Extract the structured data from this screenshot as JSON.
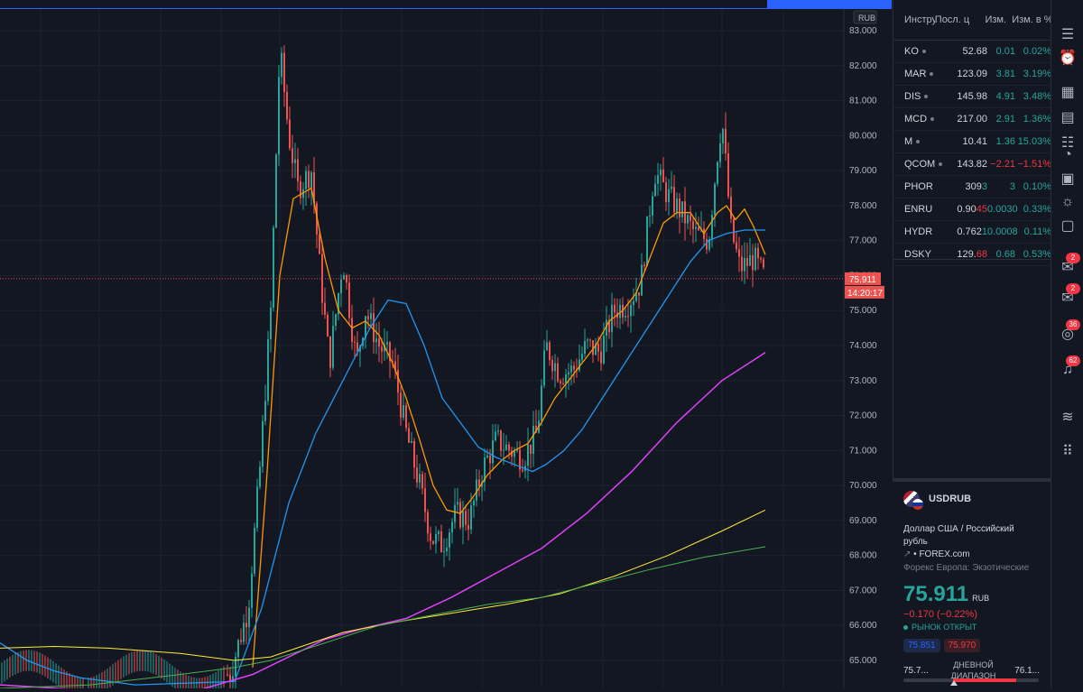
{
  "chart": {
    "currency": "RUB",
    "price_labels": [
      "83.000",
      "82.000",
      "81.000",
      "80.000",
      "79.000",
      "78.000",
      "77.000",
      "76.000",
      "75.000",
      "74.000",
      "73.000",
      "72.000",
      "71.000",
      "70.000",
      "69.000",
      "68.000",
      "67.000",
      "66.000",
      "65.000"
    ],
    "last_price_tag": "75.911",
    "countdown": "14:20:17",
    "colors": {
      "up": "#26a69a",
      "down": "#ef5350",
      "ma_fast": "#ff9800",
      "ma_mid": "#2196f3",
      "ma_slow": "#e040fb",
      "ma_200": "#ffeb3b",
      "ma_300": "#4caf50"
    }
  },
  "watchlist": {
    "headers": [
      "Инстру",
      "Посл. ц",
      "Изм.",
      "Изм. в %"
    ],
    "rows": [
      {
        "symbol": "KO",
        "last": "52.68",
        "change": "0.01",
        "pct": "0.02%",
        "dir": "pos"
      },
      {
        "symbol": "MAR",
        "last": "123.09",
        "change": "3.81",
        "pct": "3.19%",
        "dir": "pos"
      },
      {
        "symbol": "DIS",
        "last": "145.98",
        "change": "4.91",
        "pct": "3.48%",
        "dir": "pos"
      },
      {
        "symbol": "MCD",
        "last": "217.00",
        "change": "2.91",
        "pct": "1.36%",
        "dir": "pos"
      },
      {
        "symbol": "M",
        "last": "10.41",
        "change": "1.36",
        "pct": "15.03%",
        "dir": "pos"
      },
      {
        "symbol": "QCOM",
        "last": "143.82",
        "change": "−2.21",
        "pct": "−1.51%",
        "dir": "neg"
      },
      {
        "symbol": "PHOR",
        "last_a": "309",
        "last_b": "3",
        "change": "3",
        "pct": "0.10%",
        "dir": "pos",
        "split": "green"
      },
      {
        "symbol": "ENRU",
        "last_a": "0.90",
        "last_b": "45",
        "change": "0.0030",
        "pct": "0.33%",
        "dir": "pos",
        "split": "red"
      },
      {
        "symbol": "HYDR",
        "last_a": "0.762",
        "last_b": "1",
        "change": "0.0008",
        "pct": "0.11%",
        "dir": "pos",
        "split": "green"
      },
      {
        "symbol": "DSKY",
        "last_a": "129.",
        "last_b": "68",
        "change": "0.68",
        "pct": "0.53%",
        "dir": "pos",
        "split": "red"
      }
    ]
  },
  "details": {
    "symbol": "USDRUB",
    "description": "Доллар США / Российский рубль",
    "source": "FOREX.com",
    "category": "Форекс Европа: Экзотические",
    "price": "75.911",
    "currency": "RUB",
    "change": "−0.170 (−0.22%)",
    "status": "РЫНОК ОТКРЫТ",
    "bid": "75.851",
    "ask": "75.970",
    "range_low": "75.7...",
    "range_label": "ДНЕВНОЙ ДИАПАЗОН",
    "range_high": "76.1..."
  },
  "toolbar": {
    "icons": [
      "watchlist-icon",
      "alarm-clock-icon",
      "calendar-grid-icon",
      "news-icon",
      "data-window-icon",
      "hotlist-icon",
      "pie-chart-icon",
      "calendar-icon",
      "idea-bulb-icon",
      "chat-icon",
      "messages-icon",
      "streams-icon",
      "notifications-icon",
      "order-panel-icon",
      "drag-handle-icon"
    ],
    "badges": {
      "chat": "2",
      "messages": "2",
      "streams": "36",
      "notifications": "62"
    }
  }
}
